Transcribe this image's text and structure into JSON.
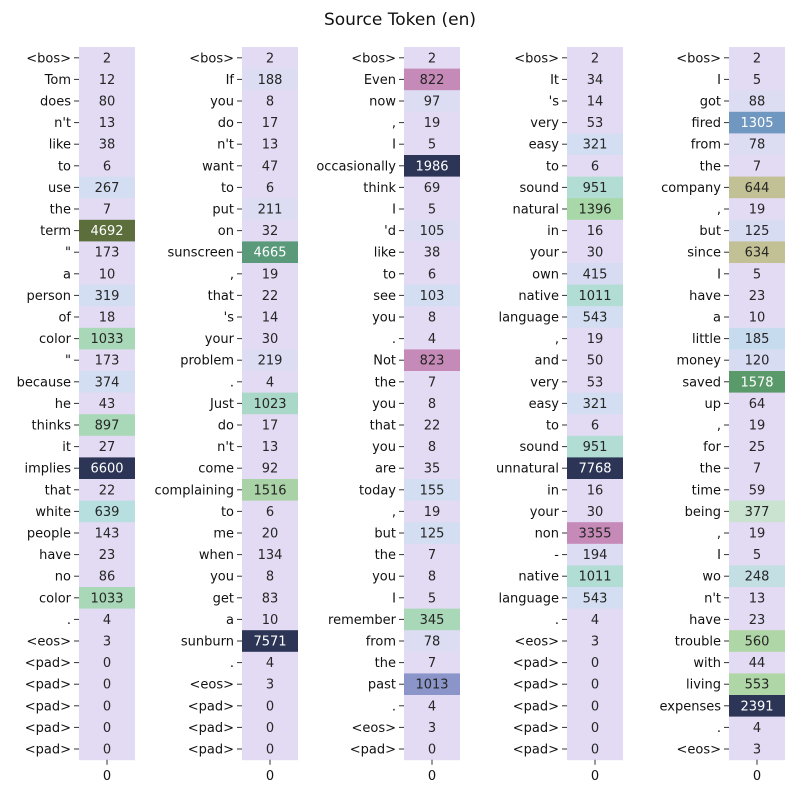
{
  "chart_data": {
    "type": "heatmap",
    "title": "Source Token (en)",
    "x_tick_label": "0",
    "color_scale": [
      "#e3dbf3",
      "#d4def2",
      "#b7dfe0",
      "#a9d8b8",
      "#c9c79a",
      "#b38bc2",
      "#5a9a7a",
      "#5b6e3b",
      "#2c3556"
    ],
    "columns": [
      {
        "tokens": [
          "<bos>",
          "Tom",
          "does",
          "n't",
          "like",
          "to",
          "use",
          "the",
          "term",
          "\"",
          "a",
          "person",
          "of",
          "color",
          "\"",
          "because",
          "he",
          "thinks",
          "it",
          "implies",
          "that",
          "white",
          "people",
          "have",
          "no",
          "color",
          ".",
          "<eos>",
          "<pad>",
          "<pad>",
          "<pad>",
          "<pad>",
          "<pad>"
        ],
        "values": [
          2,
          12,
          80,
          13,
          38,
          6,
          267,
          7,
          4692,
          173,
          10,
          319,
          18,
          1033,
          173,
          374,
          43,
          897,
          27,
          6600,
          22,
          639,
          143,
          23,
          86,
          1033,
          4,
          3,
          0,
          0,
          0,
          0,
          0
        ],
        "colors": [
          "#e3dbf3",
          "#e3dbf3",
          "#e3dbf3",
          "#e3dbf3",
          "#e3dbf3",
          "#e3dbf3",
          "#d4def2",
          "#e3dbf3",
          "#5b6e3b",
          "#e3dbf3",
          "#e3dbf3",
          "#d4def2",
          "#e3dbf3",
          "#a9d8b8",
          "#e3dbf3",
          "#d4def2",
          "#e3dbf3",
          "#a9d8b8",
          "#e3dbf3",
          "#2c3556",
          "#e3dbf3",
          "#b7dfe0",
          "#e3dbf3",
          "#e3dbf3",
          "#e3dbf3",
          "#a9d8b8",
          "#e3dbf3",
          "#e3dbf3",
          "#e3dbf3",
          "#e3dbf3",
          "#e3dbf3",
          "#e3dbf3",
          "#e3dbf3"
        ]
      },
      {
        "tokens": [
          "<bos>",
          "If",
          "you",
          "do",
          "n't",
          "want",
          "to",
          "put",
          "on",
          "sunscreen",
          ",",
          "that",
          "'s",
          "your",
          "problem",
          ".",
          "Just",
          "do",
          "n't",
          "come",
          "complaining",
          "to",
          "me",
          "when",
          "you",
          "get",
          "a",
          "sunburn",
          ".",
          "<eos>",
          "<pad>",
          "<pad>",
          "<pad>"
        ],
        "values": [
          2,
          188,
          8,
          17,
          13,
          47,
          6,
          211,
          32,
          4665,
          19,
          22,
          14,
          30,
          219,
          4,
          1023,
          17,
          13,
          92,
          1516,
          6,
          20,
          134,
          8,
          83,
          10,
          7571,
          4,
          3,
          0,
          0,
          0
        ],
        "colors": [
          "#e3dbf3",
          "#dcdcf3",
          "#e3dbf3",
          "#e3dbf3",
          "#e3dbf3",
          "#e3dbf3",
          "#e3dbf3",
          "#dcdcf3",
          "#e3dbf3",
          "#5a9a7a",
          "#e3dbf3",
          "#e3dbf3",
          "#e3dbf3",
          "#e3dbf3",
          "#dcdcf3",
          "#e3dbf3",
          "#a9d8c8",
          "#e3dbf3",
          "#e3dbf3",
          "#e3dbf3",
          "#a9d3a6",
          "#e3dbf3",
          "#e3dbf3",
          "#e3dbf3",
          "#e3dbf3",
          "#e3dbf3",
          "#e3dbf3",
          "#2c3556",
          "#e3dbf3",
          "#e3dbf3",
          "#e3dbf3",
          "#e3dbf3",
          "#e3dbf3"
        ]
      },
      {
        "tokens": [
          "<bos>",
          "Even",
          "now",
          ",",
          "I",
          "occasionally",
          "think",
          "I",
          "'d",
          "like",
          "to",
          "see",
          "you",
          ".",
          "Not",
          "the",
          "you",
          "that",
          "you",
          "are",
          "today",
          ",",
          "but",
          "the",
          "you",
          "I",
          "remember",
          "from",
          "the",
          "past",
          ".",
          "<eos>",
          "<pad>"
        ],
        "values": [
          2,
          822,
          97,
          19,
          5,
          1986,
          69,
          5,
          105,
          38,
          6,
          103,
          8,
          4,
          823,
          7,
          8,
          22,
          8,
          35,
          155,
          19,
          125,
          7,
          8,
          5,
          345,
          78,
          7,
          1013,
          4,
          3,
          0
        ],
        "colors": [
          "#e3dbf3",
          "#c58ab8",
          "#dcdcf3",
          "#e3dbf3",
          "#e3dbf3",
          "#2c3556",
          "#e3dbf3",
          "#e3dbf3",
          "#dcdcf3",
          "#e3dbf3",
          "#e3dbf3",
          "#d4def2",
          "#e3dbf3",
          "#e3dbf3",
          "#c58ab8",
          "#e3dbf3",
          "#e3dbf3",
          "#e3dbf3",
          "#e3dbf3",
          "#e3dbf3",
          "#d4def2",
          "#e3dbf3",
          "#d4def2",
          "#e3dbf3",
          "#e3dbf3",
          "#e3dbf3",
          "#a9d8b8",
          "#dcdcf3",
          "#e3dbf3",
          "#8b95c9",
          "#e3dbf3",
          "#e3dbf3",
          "#e3dbf3"
        ]
      },
      {
        "tokens": [
          "<bos>",
          "It",
          "'s",
          "very",
          "easy",
          "to",
          "sound",
          "natural",
          "in",
          "your",
          "own",
          "native",
          "language",
          ",",
          "and",
          "very",
          "easy",
          "to",
          "sound",
          "unnatural",
          "in",
          "your",
          "non",
          "-",
          "native",
          "language",
          ".",
          "<eos>",
          "<pad>",
          "<pad>",
          "<pad>",
          "<pad>",
          "<pad>"
        ],
        "values": [
          2,
          34,
          14,
          53,
          321,
          6,
          951,
          1396,
          16,
          30,
          415,
          1011,
          543,
          19,
          50,
          53,
          321,
          6,
          951,
          7768,
          16,
          30,
          3355,
          194,
          1011,
          543,
          4,
          3,
          0,
          0,
          0,
          0,
          0
        ],
        "colors": [
          "#e3dbf3",
          "#e3dbf3",
          "#e3dbf3",
          "#e3dbf3",
          "#d4def2",
          "#e3dbf3",
          "#b2ddd4",
          "#a9d8a8",
          "#e3dbf3",
          "#e3dbf3",
          "#d8dcf3",
          "#b2ddd4",
          "#d4def2",
          "#e3dbf3",
          "#e3dbf3",
          "#e3dbf3",
          "#d4def2",
          "#e3dbf3",
          "#b2ddd4",
          "#2c3556",
          "#e3dbf3",
          "#e3dbf3",
          "#c58ab8",
          "#dcdcf3",
          "#b2ddd4",
          "#d4def2",
          "#e3dbf3",
          "#e3dbf3",
          "#e3dbf3",
          "#e3dbf3",
          "#e3dbf3",
          "#e3dbf3",
          "#e3dbf3"
        ]
      },
      {
        "tokens": [
          "<bos>",
          "I",
          "got",
          "fired",
          "from",
          "the",
          "company",
          ",",
          "but",
          "since",
          "I",
          "have",
          "a",
          "little",
          "money",
          "saved",
          "up",
          ",",
          "for",
          "the",
          "time",
          "being",
          ",",
          "I",
          "wo",
          "n't",
          "have",
          "trouble",
          "with",
          "living",
          "expenses",
          ".",
          "<eos>"
        ],
        "values": [
          2,
          5,
          88,
          1305,
          78,
          7,
          644,
          19,
          125,
          634,
          5,
          23,
          10,
          185,
          120,
          1578,
          64,
          19,
          25,
          7,
          59,
          377,
          19,
          5,
          248,
          13,
          23,
          560,
          44,
          553,
          2391,
          4,
          3
        ],
        "colors": [
          "#e3dbf3",
          "#e3dbf3",
          "#dcdcf3",
          "#6f97bf",
          "#dcdcf3",
          "#e3dbf3",
          "#c2c195",
          "#e3dbf3",
          "#d8dcf3",
          "#c2c195",
          "#e3dbf3",
          "#e3dbf3",
          "#e3dbf3",
          "#c7dbef",
          "#d8dcf3",
          "#5a9a6a",
          "#e3dbf3",
          "#e3dbf3",
          "#e3dbf3",
          "#e3dbf3",
          "#e3dbf3",
          "#c9e3d0",
          "#e3dbf3",
          "#e3dbf3",
          "#c4dfe4",
          "#e3dbf3",
          "#e3dbf3",
          "#afd6a6",
          "#e3dbf3",
          "#afd6a6",
          "#2c3556",
          "#e3dbf3",
          "#e3dbf3"
        ]
      }
    ]
  }
}
